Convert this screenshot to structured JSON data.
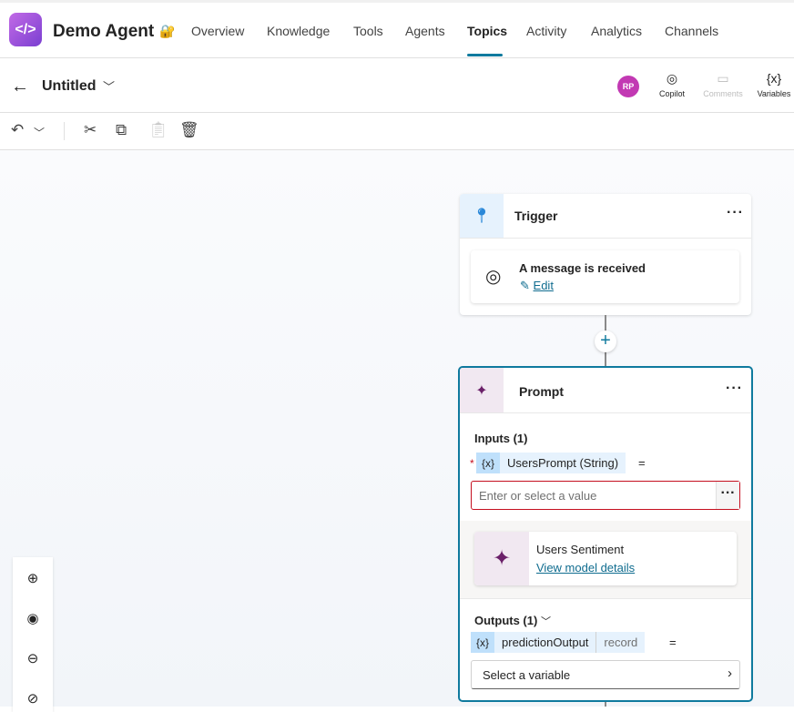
{
  "header": {
    "app_name": "Demo Agent",
    "tabs": [
      "Overview",
      "Knowledge",
      "Tools",
      "Agents",
      "Topics",
      "Activity",
      "Analytics",
      "Channels"
    ],
    "active_tab": "Topics"
  },
  "subheader": {
    "title": "Untitled",
    "avatar_initials": "RP",
    "tools": {
      "copilot": "Copilot",
      "comments": "Comments",
      "variables": "Variables"
    }
  },
  "trigger": {
    "title": "Trigger",
    "event": "A message is received",
    "edit": "Edit"
  },
  "prompt": {
    "title": "Prompt",
    "inputs_label": "Inputs (1)",
    "required": "*",
    "var_icon": "{x}",
    "input_var": "UsersPrompt (String)",
    "equals": "=",
    "input_placeholder": "Enter or select a value",
    "model_name": "Users Sentiment",
    "model_link": "View model details",
    "outputs_label": "Outputs (1)",
    "output_var": "predictionOutput",
    "output_type": "record",
    "select_placeholder": "Select a variable"
  },
  "colors": {
    "accent": "#0f7a9e",
    "error": "#c50f1f",
    "avatar": "#c239b3"
  }
}
